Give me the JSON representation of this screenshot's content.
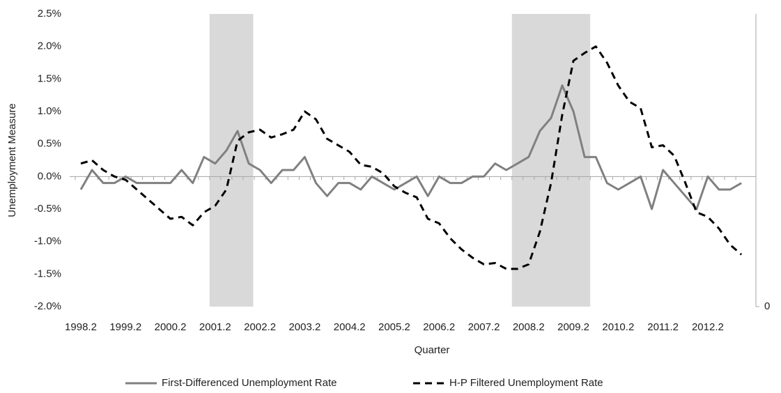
{
  "chart_data": {
    "type": "line",
    "x_label": "Quarter",
    "y_label": "Unemployment  Measure",
    "categories": [
      "1998.2",
      null,
      null,
      null,
      "1999.2",
      null,
      null,
      null,
      "2000.2",
      null,
      null,
      null,
      "2001.2",
      null,
      null,
      null,
      "2002.2",
      null,
      null,
      null,
      "2003.2",
      null,
      null,
      null,
      "2004.2",
      null,
      null,
      null,
      "2005.2",
      null,
      null,
      null,
      "2006.2",
      null,
      null,
      null,
      "2007.2",
      null,
      null,
      null,
      "2008.2",
      null,
      null,
      null,
      "2009.2",
      null,
      null,
      null,
      "2010.2",
      null,
      null,
      null,
      "2011.2",
      null,
      null,
      null,
      "2012.2",
      null,
      null,
      null
    ],
    "series": [
      {
        "name": "First-Differenced Unemployment Rate",
        "color": "#808080",
        "dash": false,
        "values": [
          -0.2,
          0.1,
          -0.1,
          -0.1,
          0.0,
          -0.1,
          -0.1,
          -0.1,
          -0.1,
          0.1,
          -0.1,
          0.3,
          0.2,
          0.4,
          0.7,
          0.2,
          0.1,
          -0.1,
          0.1,
          0.1,
          0.3,
          -0.1,
          -0.3,
          -0.1,
          -0.1,
          -0.2,
          0.0,
          -0.1,
          -0.2,
          -0.1,
          0.0,
          -0.3,
          0.0,
          -0.1,
          -0.1,
          0.0,
          0.0,
          0.2,
          0.1,
          0.2,
          0.3,
          0.7,
          0.9,
          1.4,
          1.0,
          0.3,
          0.3,
          -0.1,
          -0.2,
          -0.1,
          0.0,
          -0.5,
          0.1,
          -0.1,
          -0.3,
          -0.5,
          0.0,
          -0.2,
          -0.2,
          -0.1
        ]
      },
      {
        "name": "H-P Filtered Unemployment Rate",
        "color": "#000000",
        "dash": true,
        "values": [
          0.2,
          0.25,
          0.1,
          0.0,
          -0.05,
          -0.2,
          -0.35,
          -0.5,
          -0.65,
          -0.62,
          -0.75,
          -0.55,
          -0.45,
          -0.2,
          0.55,
          0.68,
          0.72,
          0.6,
          0.65,
          0.72,
          1.0,
          0.88,
          0.58,
          0.48,
          0.38,
          0.18,
          0.15,
          0.05,
          -0.15,
          -0.25,
          -0.32,
          -0.65,
          -0.72,
          -0.95,
          -1.12,
          -1.25,
          -1.35,
          -1.33,
          -1.42,
          -1.42,
          -1.35,
          -0.85,
          -0.1,
          0.95,
          1.78,
          1.9,
          2.0,
          1.75,
          1.4,
          1.15,
          1.05,
          0.45,
          0.48,
          0.32,
          -0.1,
          -0.55,
          -0.62,
          -0.8,
          -1.05,
          -1.2
        ]
      }
    ],
    "shaded_ranges": [
      [
        11.5,
        15.4
      ],
      [
        38.5,
        45.5
      ]
    ],
    "shade_color": "#d9d9d9",
    "ylim": [
      -2.0,
      2.5
    ],
    "yticks": [
      {
        "value": -2.0,
        "label": "-2.0%"
      },
      {
        "value": -1.5,
        "label": "-1.5%"
      },
      {
        "value": -1.0,
        "label": "-1.0%"
      },
      {
        "value": -0.5,
        "label": "-0.5%"
      },
      {
        "value": 0.0,
        "label": "0.0%"
      },
      {
        "value": 0.5,
        "label": "0.5%"
      },
      {
        "value": 1.0,
        "label": "1.0%"
      },
      {
        "value": 1.5,
        "label": "1.5%"
      },
      {
        "value": 2.0,
        "label": "2.0%"
      },
      {
        "value": 2.5,
        "label": "2.5%"
      }
    ],
    "y2lim": [
      0,
      1
    ],
    "y2ticks": [
      0
    ],
    "legend": "bottom"
  }
}
